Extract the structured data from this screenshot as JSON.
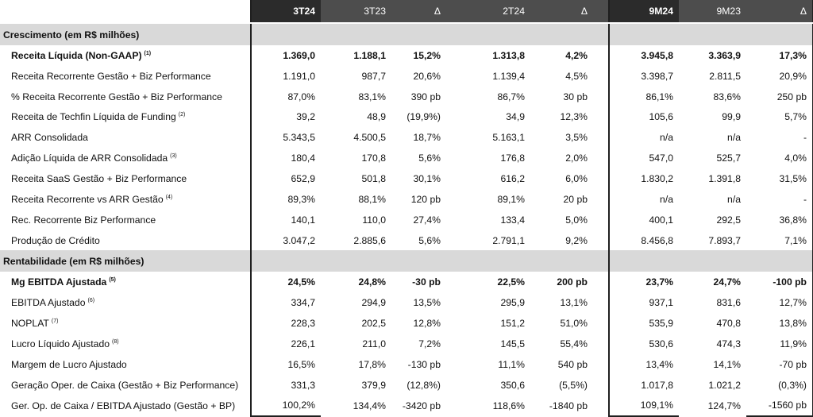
{
  "header": [
    "3T24",
    "3T23",
    "Δ",
    "2T24",
    "Δ",
    "9M24",
    "9M23",
    "Δ"
  ],
  "sections": [
    {
      "title": "Crescimento (em R$ milhões)",
      "rows": [
        {
          "label": "Receita Líquida (Non-GAAP)",
          "note": "(1)",
          "bold": true,
          "values": [
            "1.369,0",
            "1.188,1",
            "15,2%",
            "1.313,8",
            "4,2%",
            "3.945,8",
            "3.363,9",
            "17,3%"
          ]
        },
        {
          "label": "Receita Recorrente Gestão + Biz Performance",
          "note": "",
          "bold": false,
          "values": [
            "1.191,0",
            "987,7",
            "20,6%",
            "1.139,4",
            "4,5%",
            "3.398,7",
            "2.811,5",
            "20,9%"
          ]
        },
        {
          "label": "% Receita Recorrente Gestão + Biz Performance",
          "note": "",
          "bold": false,
          "values": [
            "87,0%",
            "83,1%",
            "390 pb",
            "86,7%",
            "30 pb",
            "86,1%",
            "83,6%",
            "250 pb"
          ]
        },
        {
          "label": "Receita de Techfin Líquida de Funding",
          "note": "(2)",
          "bold": false,
          "values": [
            "39,2",
            "48,9",
            "(19,9%)",
            "34,9",
            "12,3%",
            "105,6",
            "99,9",
            "5,7%"
          ]
        },
        {
          "label": "ARR Consolidada",
          "note": "",
          "bold": false,
          "values": [
            "5.343,5",
            "4.500,5",
            "18,7%",
            "5.163,1",
            "3,5%",
            "n/a",
            "n/a",
            "-"
          ]
        },
        {
          "label": "Adição Líquida de ARR Consolidada",
          "note": "(3)",
          "bold": false,
          "values": [
            "180,4",
            "170,8",
            "5,6%",
            "176,8",
            "2,0%",
            "547,0",
            "525,7",
            "4,0%"
          ]
        },
        {
          "label": "Receita SaaS Gestão + Biz Performance",
          "note": "",
          "bold": false,
          "values": [
            "652,9",
            "501,8",
            "30,1%",
            "616,2",
            "6,0%",
            "1.830,2",
            "1.391,8",
            "31,5%"
          ]
        },
        {
          "label": "Receita Recorrente vs ARR Gestão",
          "note": "(4)",
          "bold": false,
          "values": [
            "89,3%",
            "88,1%",
            "120 pb",
            "89,1%",
            "20 pb",
            "n/a",
            "n/a",
            "-"
          ]
        },
        {
          "label": "Rec. Recorrente Biz Performance",
          "note": "",
          "bold": false,
          "values": [
            "140,1",
            "110,0",
            "27,4%",
            "133,4",
            "5,0%",
            "400,1",
            "292,5",
            "36,8%"
          ]
        },
        {
          "label": "Produção de Crédito",
          "note": "",
          "bold": false,
          "values": [
            "3.047,2",
            "2.885,6",
            "5,6%",
            "2.791,1",
            "9,2%",
            "8.456,8",
            "7.893,7",
            "7,1%"
          ]
        }
      ]
    },
    {
      "title": "Rentabilidade (em R$ milhões)",
      "rows": [
        {
          "label": "Mg EBITDA Ajustada",
          "note": "(5)",
          "bold": true,
          "values": [
            "24,5%",
            "24,8%",
            "-30 pb",
            "22,5%",
            "200 pb",
            "23,7%",
            "24,7%",
            "-100 pb"
          ]
        },
        {
          "label": "EBITDA Ajustado",
          "note": "(6)",
          "bold": false,
          "values": [
            "334,7",
            "294,9",
            "13,5%",
            "295,9",
            "13,1%",
            "937,1",
            "831,6",
            "12,7%"
          ]
        },
        {
          "label": "NOPLAT",
          "note": "(7)",
          "bold": false,
          "values": [
            "228,3",
            "202,5",
            "12,8%",
            "151,2",
            "51,0%",
            "535,9",
            "470,8",
            "13,8%"
          ]
        },
        {
          "label": "Lucro Líquido Ajustado",
          "note": "(8)",
          "bold": false,
          "values": [
            "226,1",
            "211,0",
            "7,2%",
            "145,5",
            "55,4%",
            "530,6",
            "474,3",
            "11,9%"
          ]
        },
        {
          "label": "Margem de Lucro Ajustado",
          "note": "",
          "bold": false,
          "values": [
            "16,5%",
            "17,8%",
            "-130 pb",
            "11,1%",
            "540 pb",
            "13,4%",
            "14,1%",
            "-70 pb"
          ]
        },
        {
          "label": "Geração Oper. de Caixa (Gestão + Biz Performance)",
          "note": "",
          "bold": false,
          "values": [
            "331,3",
            "379,9",
            "(12,8%)",
            "350,6",
            "(5,5%)",
            "1.017,8",
            "1.021,2",
            "(0,3%)"
          ]
        },
        {
          "label": "Ger. Op. de Caixa / EBITDA Ajustado (Gestão + BP)",
          "note": "",
          "bold": false,
          "values": [
            "100,2%",
            "134,4%",
            "-3420 pb",
            "118,6%",
            "-1840 pb",
            "109,1%",
            "124,7%",
            "-1560 pb"
          ]
        }
      ]
    }
  ]
}
